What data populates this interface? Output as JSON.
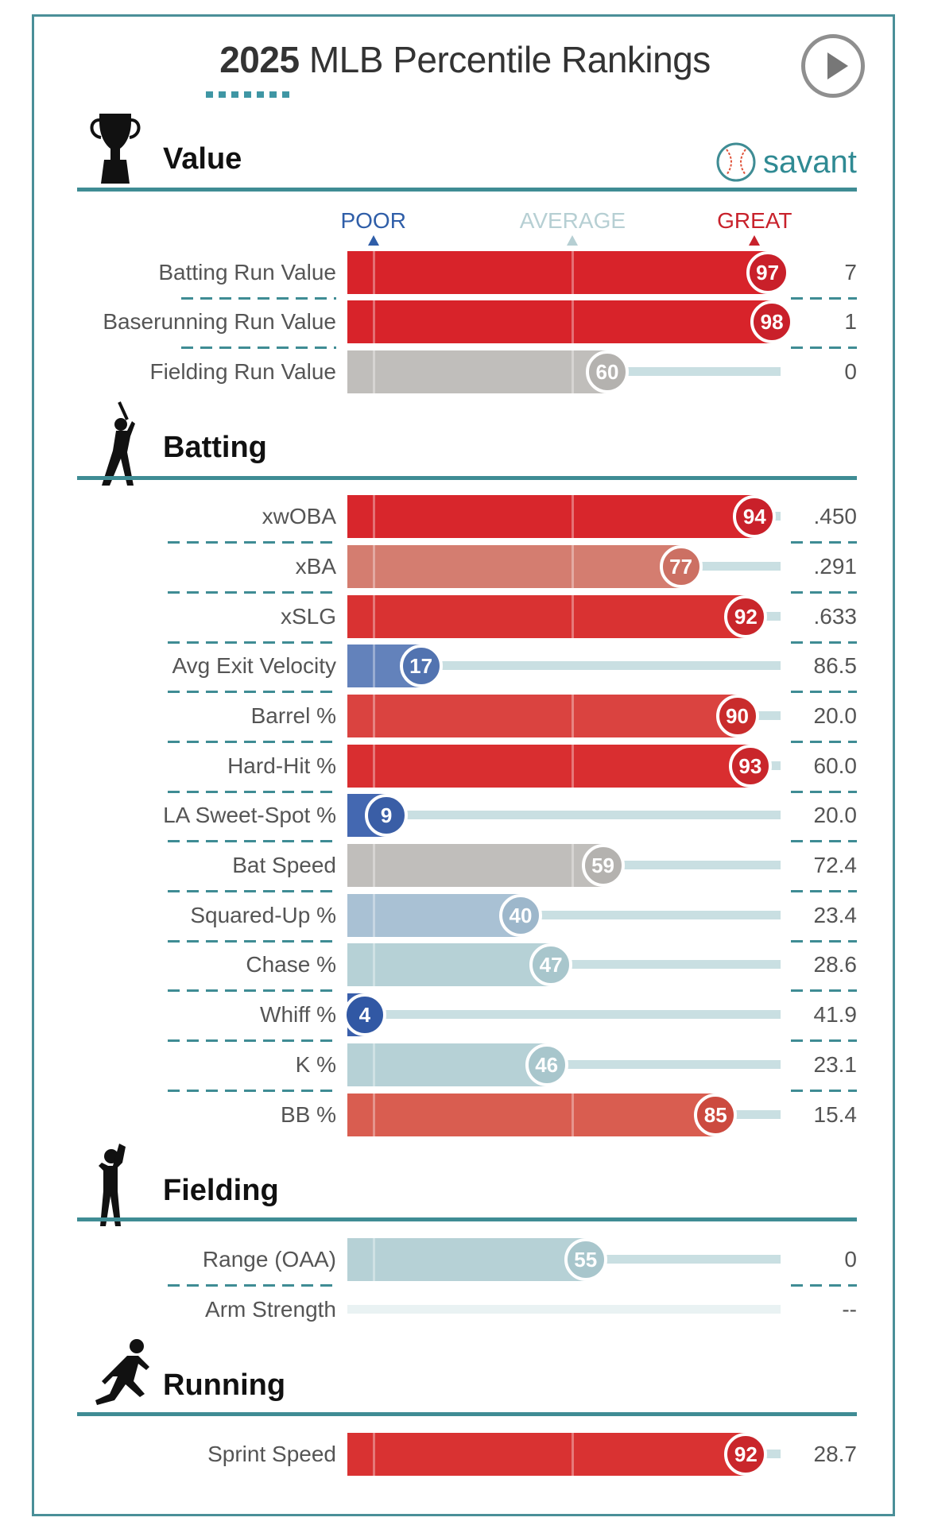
{
  "title": {
    "year": "2025",
    "rest": " MLB Percentile Rankings"
  },
  "brand": "savant",
  "scale": {
    "poor": "POOR",
    "average": "AVERAGE",
    "great": "GREAT",
    "poor_color": "#2f5ea8",
    "average_color": "#b6cfd3",
    "great_color": "#c8212b"
  },
  "sections": [
    {
      "name": "Value",
      "icon": "trophy-icon",
      "rows": [
        {
          "label": "Batting Run Value",
          "pct": 97,
          "value": "7",
          "bar": "#d8232a",
          "circle": "#c9202a"
        },
        {
          "label": "Baserunning Run Value",
          "pct": 98,
          "value": "1",
          "bar": "#d8232a",
          "circle": "#c9202a"
        },
        {
          "label": "Fielding Run Value",
          "pct": 60,
          "value": "0",
          "bar": "#c0bebb",
          "circle": "#b4b2af"
        }
      ]
    },
    {
      "name": "Batting",
      "icon": "batter-icon",
      "rows": [
        {
          "label": "xwOBA",
          "pct": 94,
          "value": ".450",
          "bar": "#d8262c",
          "circle": "#c9202a"
        },
        {
          "label": "xBA",
          "pct": 77,
          "value": ".291",
          "bar": "#d47d70",
          "circle": "#cc7063"
        },
        {
          "label": "xSLG",
          "pct": 92,
          "value": ".633",
          "bar": "#d93232",
          "circle": "#c9262b"
        },
        {
          "label": "Avg Exit Velocity",
          "pct": 17,
          "value": "86.5",
          "bar": "#6382bb",
          "circle": "#5273b0"
        },
        {
          "label": "Barrel %",
          "pct": 90,
          "value": "20.0",
          "bar": "#da4340",
          "circle": "#c92c2c"
        },
        {
          "label": "Hard-Hit %",
          "pct": 93,
          "value": "60.0",
          "bar": "#d92e30",
          "circle": "#c9262b"
        },
        {
          "label": "LA Sweet-Spot %",
          "pct": 9,
          "value": "20.0",
          "bar": "#4468b1",
          "circle": "#3a5ea6"
        },
        {
          "label": "Bat Speed",
          "pct": 59,
          "value": "72.4",
          "bar": "#c0bebb",
          "circle": "#b4b2af"
        },
        {
          "label": "Squared-Up %",
          "pct": 40,
          "value": "23.4",
          "bar": "#a9c1d4",
          "circle": "#9db7cb"
        },
        {
          "label": "Chase %",
          "pct": 47,
          "value": "28.6",
          "bar": "#b6d1d6",
          "circle": "#a8c6cc"
        },
        {
          "label": "Whiff %",
          "pct": 4,
          "value": "41.9",
          "bar": "#3a5fab",
          "circle": "#3158a4"
        },
        {
          "label": "K %",
          "pct": 46,
          "value": "23.1",
          "bar": "#b6d1d6",
          "circle": "#a8c6cc"
        },
        {
          "label": "BB %",
          "pct": 85,
          "value": "15.4",
          "bar": "#d95d50",
          "circle": "#cc4a3f"
        }
      ]
    },
    {
      "name": "Fielding",
      "icon": "fielder-icon",
      "rows": [
        {
          "label": "Range (OAA)",
          "pct": 55,
          "value": "0",
          "bar": "#b6d1d6",
          "circle": "#a8c6cc"
        },
        {
          "label": "Arm Strength",
          "pct": null,
          "value": "--",
          "bar": "#e9f2f3",
          "circle": null
        }
      ]
    },
    {
      "name": "Running",
      "icon": "runner-icon",
      "rows": [
        {
          "label": "Sprint Speed",
          "pct": 92,
          "value": "28.7",
          "bar": "#d93232",
          "circle": "#c9262b"
        }
      ]
    }
  ]
}
